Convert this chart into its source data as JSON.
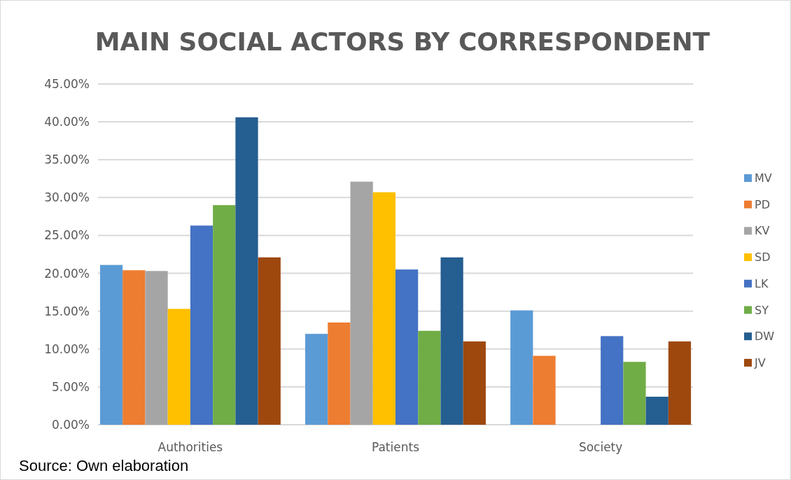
{
  "chart_data": {
    "type": "bar",
    "title": "MAIN SOCIAL ACTORS BY CORRESPONDENT",
    "categories": [
      "Authorities",
      "Patients",
      "Society"
    ],
    "series": [
      {
        "name": "MV",
        "color": "#5b9bd5",
        "values": [
          21.1,
          12.0,
          15.1
        ]
      },
      {
        "name": "PD",
        "color": "#ed7d31",
        "values": [
          20.4,
          13.5,
          9.1
        ]
      },
      {
        "name": "KV",
        "color": "#a5a5a5",
        "values": [
          20.3,
          32.1,
          0
        ]
      },
      {
        "name": "SD",
        "color": "#ffc000",
        "values": [
          15.3,
          30.7,
          0
        ]
      },
      {
        "name": "LK",
        "color": "#4472c4",
        "values": [
          26.3,
          20.5,
          11.7
        ]
      },
      {
        "name": "SY",
        "color": "#70ad47",
        "values": [
          29.0,
          12.4,
          8.3
        ]
      },
      {
        "name": "DW",
        "color": "#255e91",
        "values": [
          40.6,
          22.1,
          3.7
        ]
      },
      {
        "name": "JV",
        "color": "#9e480e",
        "values": [
          22.1,
          11.0,
          11.0
        ]
      }
    ],
    "ylim": [
      0,
      45
    ],
    "yticks": [
      {
        "value": 0,
        "label": "0.00%"
      },
      {
        "value": 5,
        "label": "5.00%"
      },
      {
        "value": 10,
        "label": "10.00%"
      },
      {
        "value": 15,
        "label": "15.00%"
      },
      {
        "value": 20,
        "label": "20.00%"
      },
      {
        "value": 25,
        "label": "25.00%"
      },
      {
        "value": 30,
        "label": "30.00%"
      },
      {
        "value": 35,
        "label": "35.00%"
      },
      {
        "value": 40,
        "label": "40.00%"
      },
      {
        "value": 45,
        "label": "45.00%"
      }
    ],
    "grid": "y",
    "legend": "right",
    "annotations": [
      "Source: Own elaboration"
    ]
  }
}
